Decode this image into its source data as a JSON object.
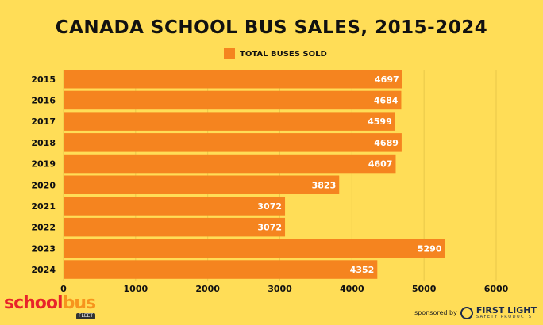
{
  "chart_data": {
    "type": "bar",
    "orientation": "horizontal",
    "title": "CANADA SCHOOL BUS SALES, 2015-2024",
    "categories": [
      "2015",
      "2016",
      "2017",
      "2018",
      "2019",
      "2020",
      "2021",
      "2022",
      "2023",
      "2024"
    ],
    "series": [
      {
        "name": "TOTAL BUSES SOLD",
        "values": [
          4697,
          4684,
          4599,
          4689,
          4607,
          3823,
          3072,
          3072,
          5290,
          4352
        ],
        "color": "#F5841F"
      }
    ],
    "xlim": [
      0,
      6000
    ],
    "xticks": [
      "0",
      "1000",
      "2000",
      "3000",
      "4000",
      "5000",
      "6000"
    ],
    "grid": true,
    "legend": "top-center",
    "data_labels": true
  },
  "footer": {
    "logo_part1": "school",
    "logo_part2": "bus",
    "logo_sub": "FLEET",
    "sponsored_by": "sponsored by",
    "sponsor_name": "FIRST LIGHT",
    "sponsor_sub": "SAFETY PRODUCTS"
  },
  "colors": {
    "background": "#FFDD57",
    "bar": "#F5841F"
  }
}
